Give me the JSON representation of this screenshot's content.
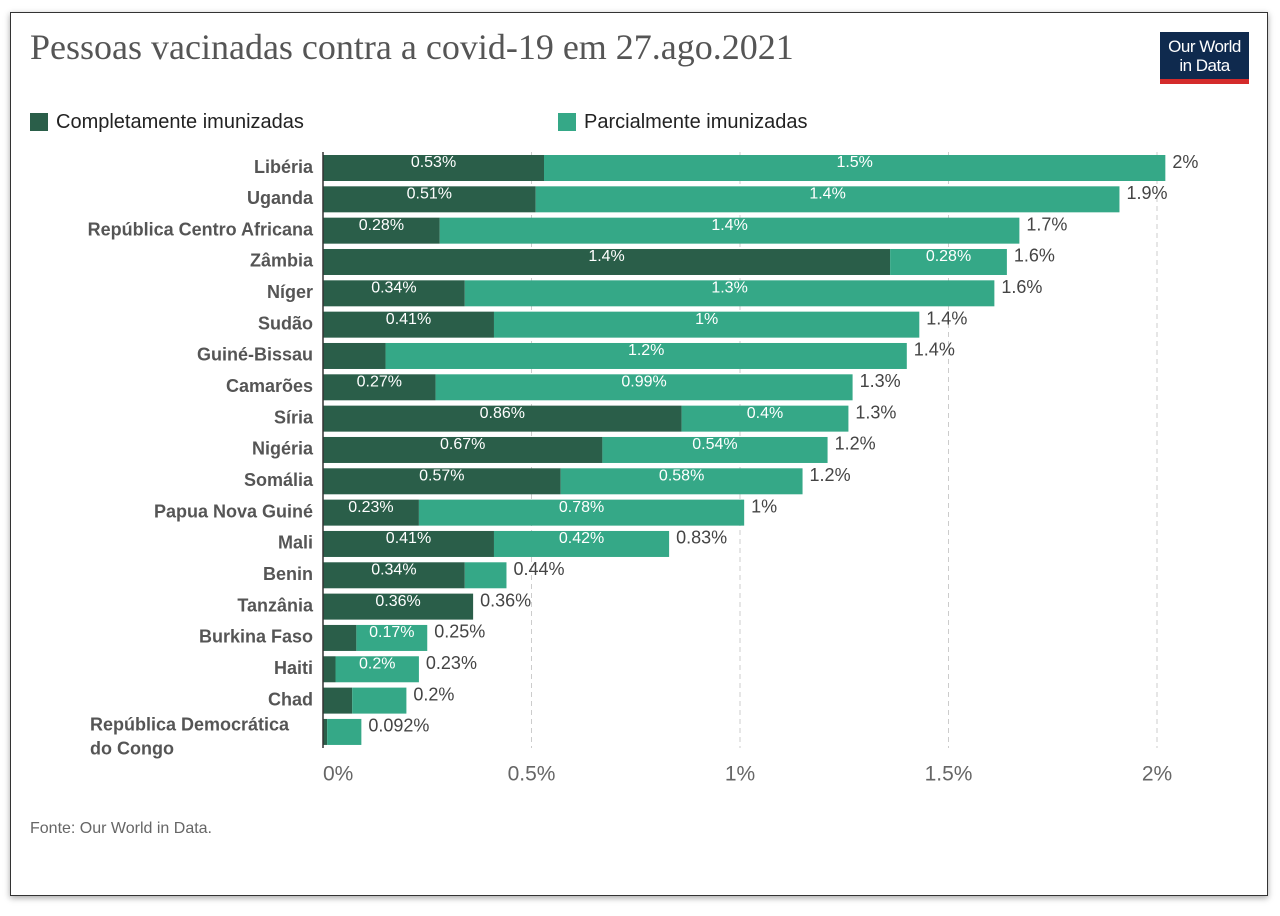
{
  "title": "Pessoas vacinadas contra a covid-19 em 27.ago.2021",
  "logo": {
    "line1": "Our World",
    "line2": "in Data"
  },
  "source": "Fonte: Our World in Data.",
  "colors": {
    "fully": "#2a5e49",
    "partial": "#35a887",
    "grid": "#cccccc",
    "axis": "#333333"
  },
  "chart_data": {
    "type": "bar",
    "orientation": "horizontal",
    "stacked": true,
    "title": "Pessoas vacinadas contra a covid-19 em 27.ago.2021",
    "xlim": [
      0,
      2
    ],
    "x_ticks": [
      "0%",
      "0.5%",
      "1%",
      "1.5%",
      "2%"
    ],
    "x_tick_values": [
      0,
      0.5,
      1,
      1.5,
      2
    ],
    "grid": "vertical-dashed",
    "legend_position": "top-left",
    "categories": [
      [
        "Libéria"
      ],
      [
        "Uganda"
      ],
      [
        "República Centro Africana"
      ],
      [
        "Zâmbia"
      ],
      [
        "Níger"
      ],
      [
        "Sudão"
      ],
      [
        "Guiné-Bissau"
      ],
      [
        "Camarões"
      ],
      [
        "Síria"
      ],
      [
        "Nigéria"
      ],
      [
        "Somália"
      ],
      [
        "Papua Nova Guiné"
      ],
      [
        "Mali"
      ],
      [
        "Benin"
      ],
      [
        "Tanzânia"
      ],
      [
        "Burkina Faso"
      ],
      [
        "Haiti"
      ],
      [
        "Chad"
      ],
      [
        "República Democrática",
        "do Congo"
      ]
    ],
    "series": [
      {
        "name": "Completamente imunizadas",
        "values": [
          0.53,
          0.51,
          0.28,
          1.36,
          0.34,
          0.41,
          0.15,
          0.27,
          0.86,
          0.67,
          0.57,
          0.23,
          0.41,
          0.34,
          0.36,
          0.08,
          0.03,
          0.07,
          0.01
        ],
        "labels": [
          "0.53%",
          "0.51%",
          "0.28%",
          "1.4%",
          "0.34%",
          "0.41%",
          "",
          "0.27%",
          "0.86%",
          "0.67%",
          "0.57%",
          "0.23%",
          "0.41%",
          "0.34%",
          "0.36%",
          "",
          "",
          "",
          ""
        ]
      },
      {
        "name": "Parcialmente imunizadas",
        "values": [
          1.49,
          1.4,
          1.39,
          0.28,
          1.27,
          1.02,
          1.25,
          1.0,
          0.4,
          0.54,
          0.58,
          0.78,
          0.42,
          0.1,
          0.0,
          0.17,
          0.2,
          0.13,
          0.082
        ],
        "labels": [
          "1.5%",
          "1.4%",
          "1.4%",
          "0.28%",
          "1.3%",
          "1%",
          "1.2%",
          "0.99%",
          "0.4%",
          "0.54%",
          "0.58%",
          "0.78%",
          "0.42%",
          "",
          "",
          "0.17%",
          "0.2%",
          "",
          ""
        ]
      }
    ],
    "totals": [
      "2%",
      "1.9%",
      "1.7%",
      "1.6%",
      "1.6%",
      "1.4%",
      "1.4%",
      "1.3%",
      "1.3%",
      "1.2%",
      "1.2%",
      "1%",
      "0.83%",
      "0.44%",
      "0.36%",
      "0.25%",
      "0.23%",
      "0.2%",
      "0.092%"
    ]
  }
}
